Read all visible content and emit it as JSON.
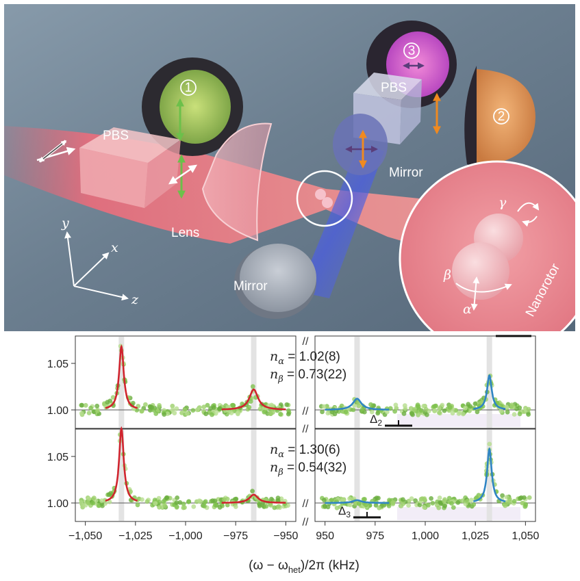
{
  "illustration": {
    "labels": {
      "pbs_left": "PBS",
      "pbs_right": "PBS",
      "lens": "Lens",
      "mirror_bottom": "Mirror",
      "mirror_right": "Mirror",
      "nanorotor": "Nanorotor"
    },
    "detectors": {
      "d1": "1",
      "d2": "2",
      "d3": "3"
    },
    "axes": {
      "x": "x",
      "y": "y",
      "z": "z"
    },
    "angles": {
      "alpha": "α",
      "beta": "β",
      "gamma": "γ"
    }
  },
  "chart_data": [
    {
      "type": "line",
      "panel": "top",
      "ylim": [
        0.985,
        1.08
      ],
      "yticks": [
        1.0,
        1.05
      ],
      "ytick_labels": [
        "1.00",
        "1.05"
      ],
      "xlim_left": [
        -1055,
        -945
      ],
      "xlim_right": [
        945,
        1055
      ],
      "annotations": {
        "n_alpha": "1.02(8)",
        "n_beta": "0.73(22)",
        "delta": "Δ2"
      },
      "series": [
        {
          "name": "alpha-peaks",
          "color": "#d0242e",
          "peaks": [
            {
              "x": -1032,
              "height": 0.068
            },
            {
              "x": -966,
              "height": 0.022
            }
          ]
        },
        {
          "name": "beta-peaks",
          "color": "#2f85c4",
          "peaks": [
            {
              "x": 966,
              "height": 0.012
            },
            {
              "x": 1032,
              "height": 0.037
            }
          ]
        }
      ]
    },
    {
      "type": "line",
      "panel": "bottom",
      "ylim": [
        0.985,
        1.08
      ],
      "yticks": [
        1.0,
        1.05
      ],
      "ytick_labels": [
        "1.00",
        "1.05"
      ],
      "xlim_left": [
        -1055,
        -945
      ],
      "xlim_right": [
        945,
        1055
      ],
      "annotations": {
        "n_alpha": "1.30(6)",
        "n_beta": "0.54(32)",
        "delta": "Δ3"
      },
      "series": [
        {
          "name": "alpha-peaks",
          "color": "#d0242e",
          "peaks": [
            {
              "x": -1032,
              "height": 0.08
            },
            {
              "x": -966,
              "height": 0.009
            }
          ]
        },
        {
          "name": "beta-peaks",
          "color": "#2f85c4",
          "peaks": [
            {
              "x": 966,
              "height": 0.003
            },
            {
              "x": 1032,
              "height": 0.058
            }
          ]
        }
      ]
    },
    {
      "type": "axis",
      "xtick_values": [
        -1050,
        -1025,
        -1000,
        -975,
        -950,
        950,
        975,
        1000,
        1025,
        1050
      ],
      "xtick_labels": [
        "−1,050",
        "−1,025",
        "−1,000",
        "−975",
        "−950",
        "950",
        "975",
        "1,000",
        "1,025",
        "1,050"
      ],
      "xlabel_main": "(ω − ω",
      "xlabel_sub": "het",
      "xlabel_tail": ")/2π (kHz)"
    }
  ]
}
